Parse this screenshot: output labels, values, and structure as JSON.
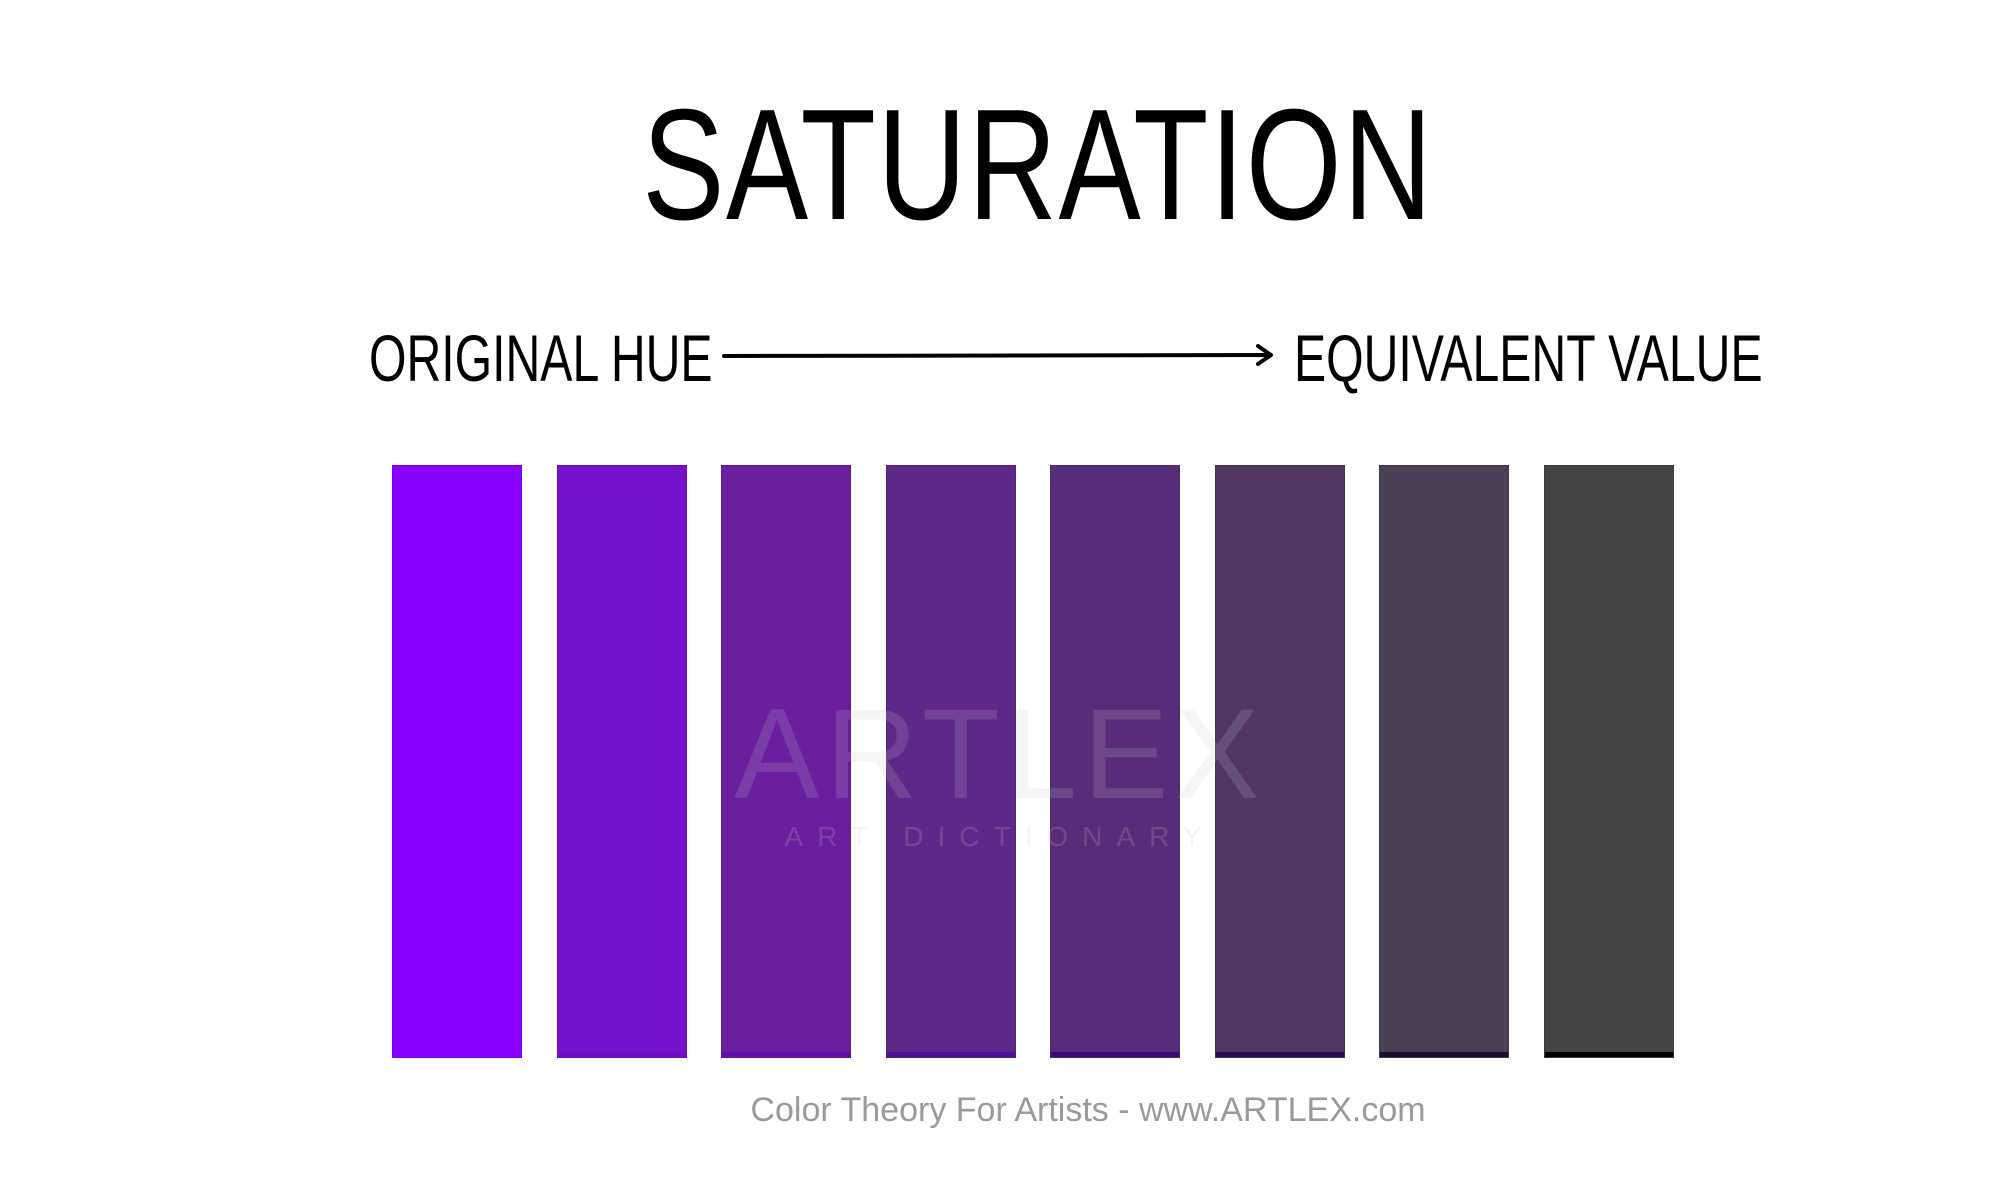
{
  "title": "SATURATION",
  "scale": {
    "left_label": "ORIGINAL HUE",
    "right_label": "EQUIVALENT VALUE"
  },
  "swatches": [
    {
      "color": "#8800FF",
      "base": "#8800FF"
    },
    {
      "color": "#7611CC",
      "base": "#6f0fc4"
    },
    {
      "color": "#6A1F9F",
      "base": "#5e0fb0"
    },
    {
      "color": "#5F2789",
      "base": "#4e129a"
    },
    {
      "color": "#572D79",
      "base": "#3a0c7a"
    },
    {
      "color": "#503865",
      "base": "#2a0b55"
    },
    {
      "color": "#4A3F53",
      "base": "#1c0c2e"
    },
    {
      "color": "#444444",
      "base": "#000000"
    }
  ],
  "watermark": {
    "main": "ARTLEX",
    "sub": "ART DICTIONARY"
  },
  "footer": "Color Theory For Artists - www.ARTLEX.com"
}
